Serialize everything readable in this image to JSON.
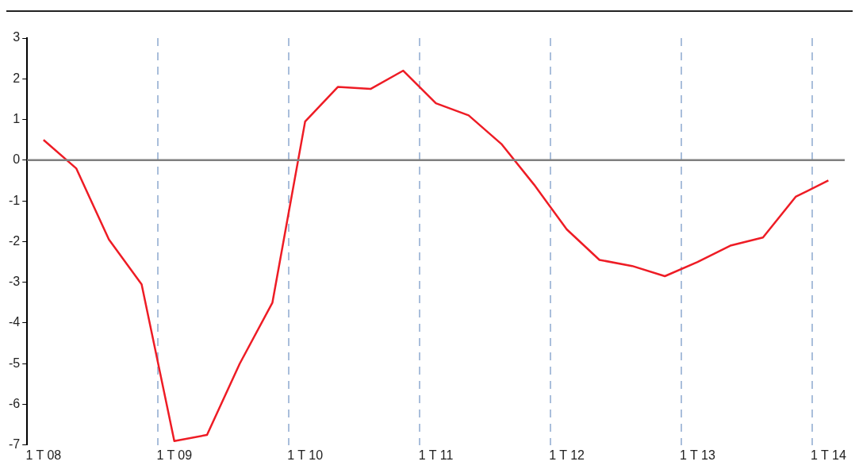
{
  "chart_data": {
    "type": "line",
    "categories": [
      "1 T 08",
      null,
      null,
      null,
      "1 T 09",
      null,
      null,
      null,
      "1 T 10",
      null,
      null,
      null,
      "1 T 11",
      null,
      null,
      null,
      "1 T 12",
      null,
      null,
      null,
      "1 T 13",
      null,
      null,
      null,
      "1 T 14"
    ],
    "series": [
      {
        "color": "#ee1c25",
        "values": [
          0.5,
          -0.2,
          -1.95,
          -3.05,
          -6.9,
          -6.75,
          -5.0,
          -3.5,
          0.95,
          1.8,
          1.75,
          2.2,
          1.4,
          1.1,
          0.4,
          -0.6,
          -1.7,
          -2.45,
          -2.6,
          -2.85,
          -2.5,
          -2.1,
          -1.9,
          -0.9,
          -0.5
        ]
      }
    ],
    "ylim": [
      -7,
      3
    ],
    "yticks": [
      -7,
      -6,
      -5,
      -4,
      -3,
      -2,
      -1,
      0,
      1,
      2,
      3
    ],
    "ref_lines": [
      {
        "axis": "y",
        "value": 0,
        "color": "#7f7f7f"
      }
    ],
    "grid": "x",
    "legend": false,
    "marker": "none",
    "line_style": "solid"
  }
}
